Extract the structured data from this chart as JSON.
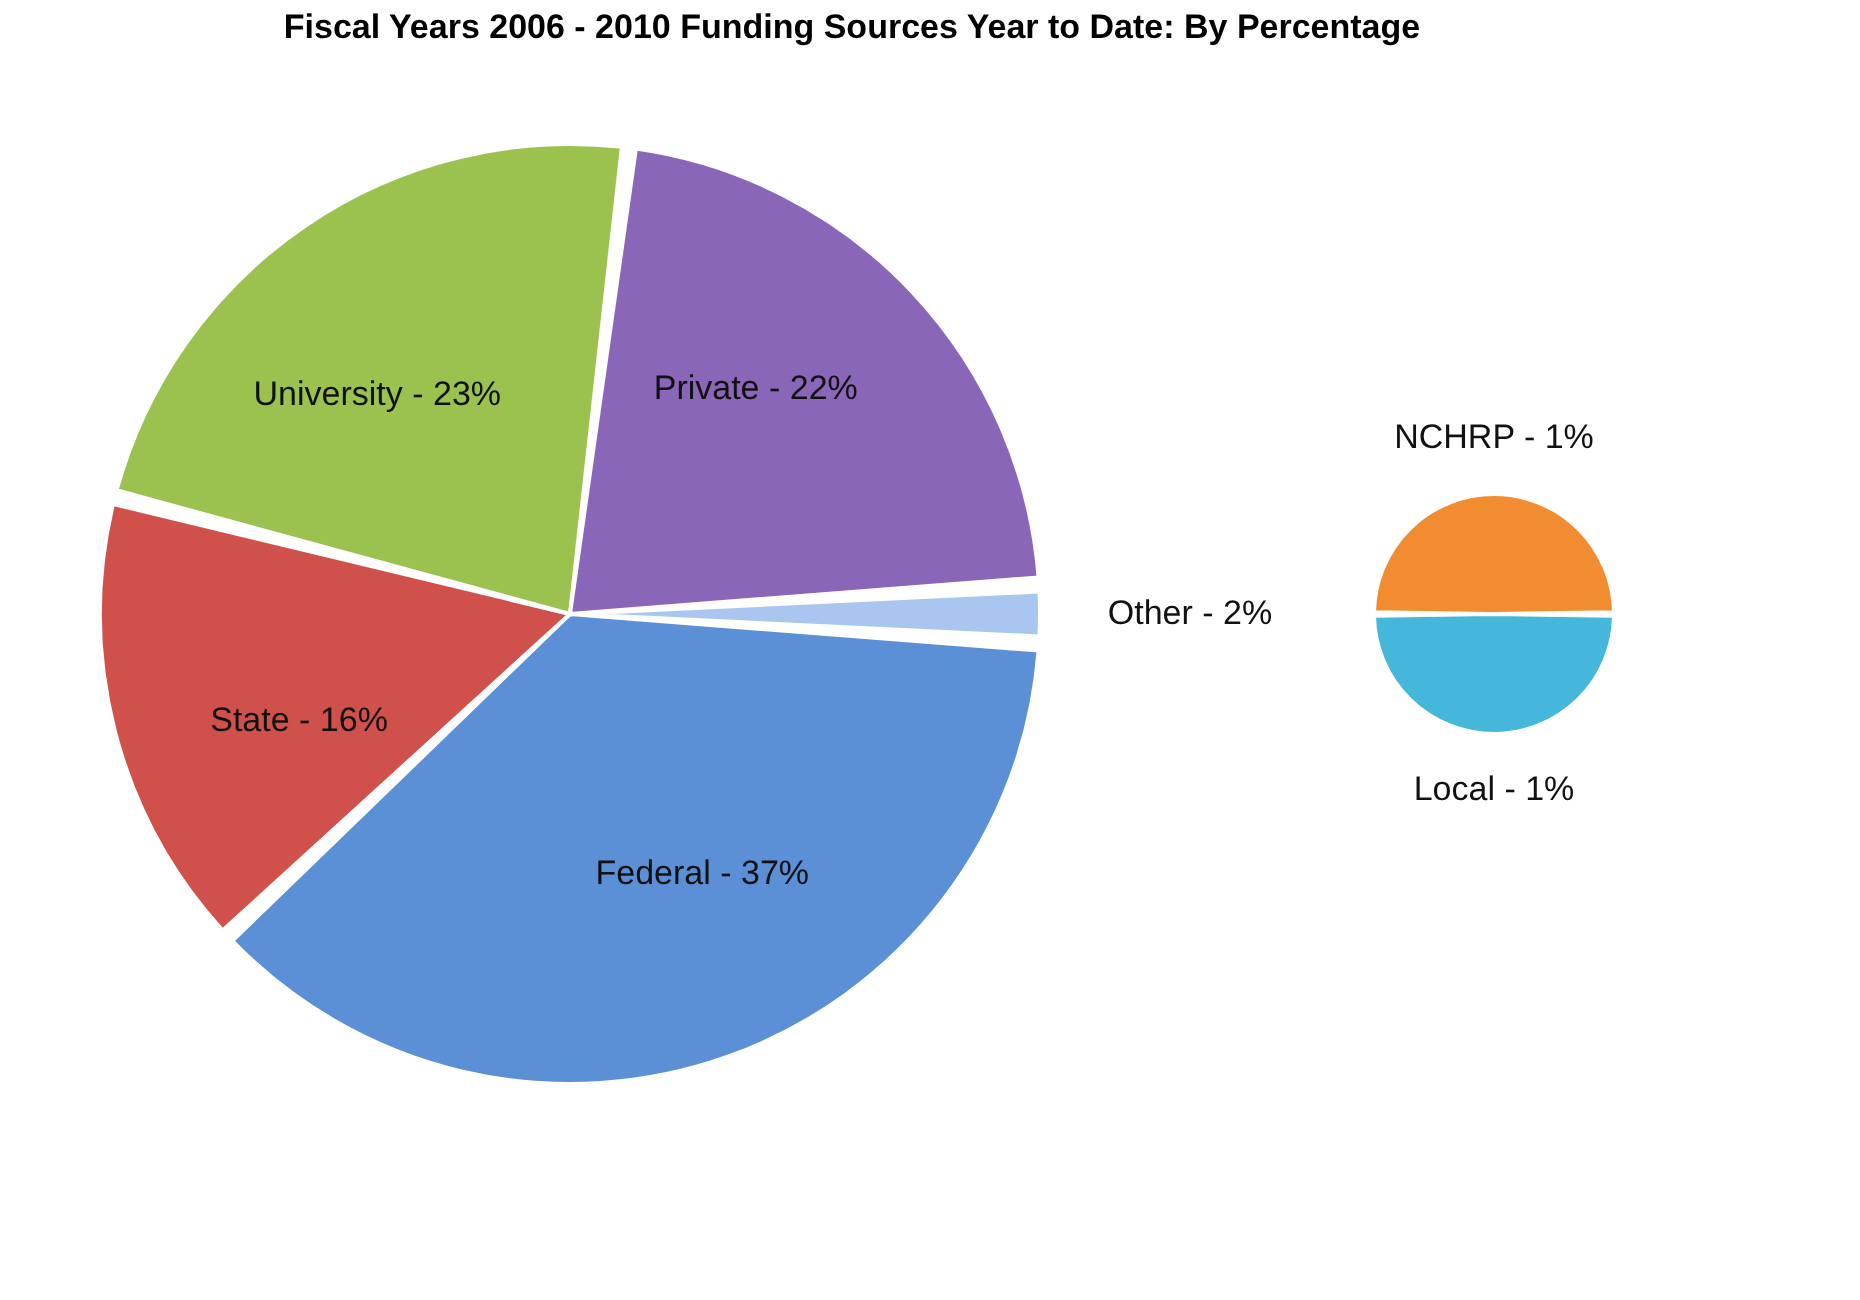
{
  "chart_data": [
    {
      "type": "pie",
      "title": "Fiscal Years 2006 - 2010 Funding Sources Year to Date: By Percentage",
      "categories": [
        "Other - 2%",
        "Federal - 37%",
        "State - 16%",
        "University - 23%",
        "Private - 22%"
      ],
      "values": [
        2,
        37,
        16,
        23,
        22
      ],
      "colors": [
        "#a9c6f0",
        "#5b8fd6",
        "#d0504c",
        "#9bc24f",
        "#8a66b8"
      ],
      "legend": false
    },
    {
      "type": "pie",
      "categories": [
        "NCHRP - 1%",
        "Local - 1%"
      ],
      "values": [
        50,
        50
      ],
      "colors": [
        "#f28c30",
        "#45b7da"
      ],
      "legend": false
    }
  ]
}
